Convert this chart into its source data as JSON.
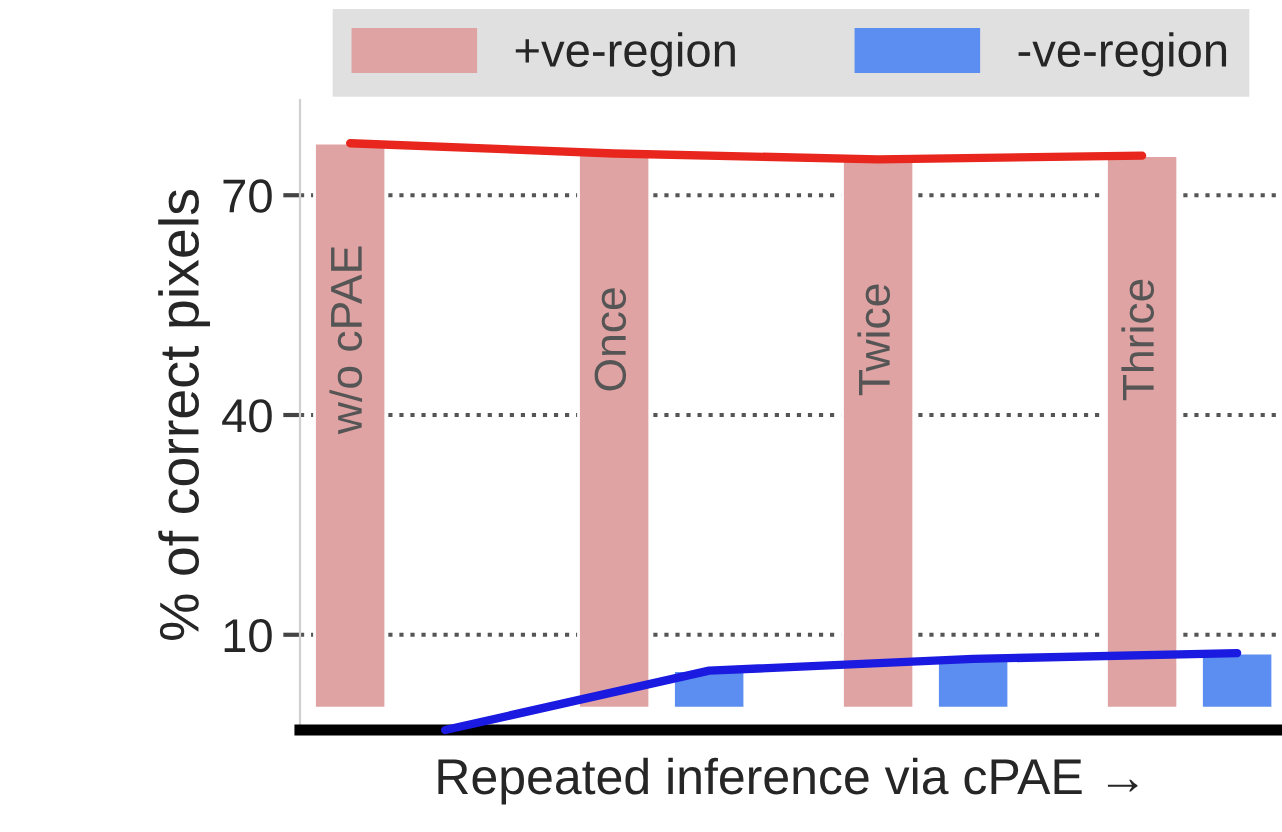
{
  "chart_data": {
    "type": "bar",
    "xlabel": "Repeated inference via cPAE →",
    "ylabel": "% of correct pixels",
    "categories": [
      "w/o cPAE",
      "Once",
      "Twice",
      "Thrice"
    ],
    "series": [
      {
        "name": "+ve-region",
        "color": "#e0a3a3",
        "values": [
          77.1,
          75.7,
          74.9,
          75.4
        ]
      },
      {
        "name": "-ve-region",
        "color": "#5b8ef0",
        "values": [
          null,
          5.1,
          6.7,
          7.5
        ]
      },
      {
        "type": "line",
        "color": "#e8261e",
        "values": [
          77.1,
          75.7,
          74.9,
          75.4
        ]
      },
      {
        "type": "line",
        "color": "#1a1ae0",
        "values": [
          -3,
          5.1,
          6.7,
          7.5
        ]
      }
    ],
    "ylim": [
      -3,
      83
    ],
    "yticks": [
      10,
      40,
      70
    ],
    "grid": "y",
    "legend": "top",
    "line_style": "solid",
    "marker": "none"
  }
}
